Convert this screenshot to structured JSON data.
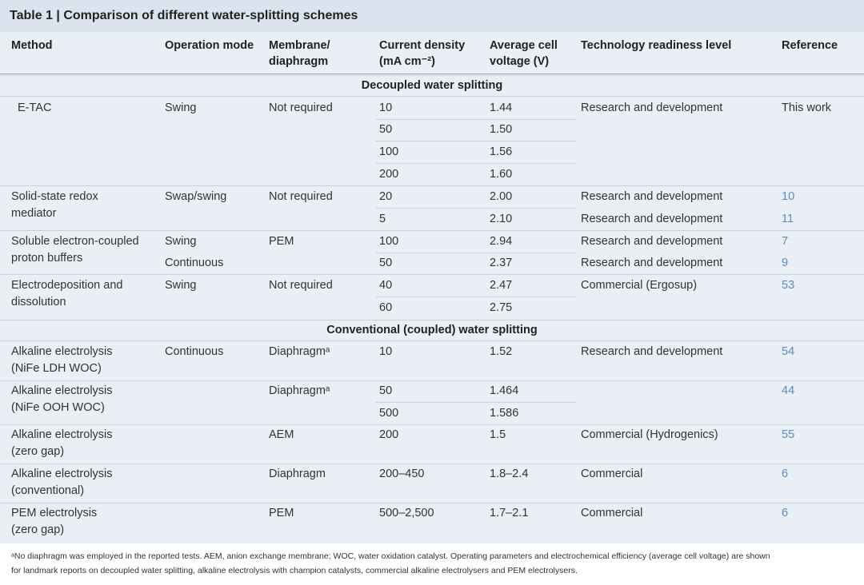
{
  "title": "Table 1 | Comparison of different water-splitting schemes",
  "columns": [
    [
      "Method"
    ],
    [
      "Operation mode"
    ],
    [
      "Membrane/",
      "diaphragm"
    ],
    [
      "Current density",
      "(mA cm⁻²)"
    ],
    [
      "Average cell",
      "voltage (V)"
    ],
    [
      "Technology readiness level"
    ],
    [
      "Reference"
    ]
  ],
  "sections": [
    {
      "title": "Decoupled water splitting",
      "groups": [
        {
          "method": [
            "E-TAC"
          ],
          "entries": [
            {
              "operation": "Swing",
              "membrane": "Not required",
              "current": "10",
              "voltage": "1.44",
              "trl": "Research and development",
              "reference": "This work"
            },
            {
              "current": "50",
              "voltage": "1.50"
            },
            {
              "current": "100",
              "voltage": "1.56"
            },
            {
              "current": "200",
              "voltage": "1.60"
            }
          ]
        },
        {
          "method": [
            "Solid-state redox",
            "mediator"
          ],
          "entries": [
            {
              "operation": "Swap/swing",
              "membrane": "Not required",
              "current": "20",
              "voltage": "2.00",
              "trl": "Research and development",
              "reference": "10"
            },
            {
              "current": "5",
              "voltage": "2.10",
              "trl": "Research and development",
              "reference": "11"
            }
          ]
        },
        {
          "method": [
            "Soluble electron-coupled",
            "proton buffers"
          ],
          "entries": [
            {
              "operation": "Swing",
              "membrane": "PEM",
              "current": "100",
              "voltage": "2.94",
              "trl": "Research and development",
              "reference": "7"
            },
            {
              "operation": "Continuous",
              "current": "50",
              "voltage": "2.37",
              "trl": "Research and development",
              "reference": "9"
            }
          ]
        },
        {
          "method": [
            "Electrodeposition and",
            "dissolution"
          ],
          "entries": [
            {
              "operation": "Swing",
              "membrane": "Not required",
              "current": "40",
              "voltage": "2.47",
              "trl": "Commercial (Ergosup)",
              "reference": "53"
            },
            {
              "current": "60",
              "voltage": "2.75"
            }
          ]
        }
      ]
    },
    {
      "title": "Conventional (coupled) water splitting",
      "groups": [
        {
          "method": [
            "Alkaline electrolysis",
            "(NiFe LDH WOC)"
          ],
          "entries": [
            {
              "operation": "Continuous",
              "membrane": "Diaphragmᵃ",
              "current": "10",
              "voltage": "1.52",
              "trl": "Research and development",
              "reference": "54"
            }
          ]
        },
        {
          "method": [
            "Alkaline electrolysis",
            "(NiFe OOH WOC)"
          ],
          "entries": [
            {
              "membrane": "Diaphragmᵃ",
              "current": "50",
              "voltage": "1.464",
              "reference": "44"
            },
            {
              "current": "500",
              "voltage": "1.586"
            }
          ]
        },
        {
          "method": [
            "Alkaline electrolysis",
            "(zero gap)"
          ],
          "entries": [
            {
              "membrane": "AEM",
              "current": "200",
              "voltage": "1.5",
              "trl": "Commercial (Hydrogenics)",
              "reference": "55"
            }
          ]
        },
        {
          "method": [
            "Alkaline electrolysis",
            "(conventional)"
          ],
          "entries": [
            {
              "membrane": "Diaphragm",
              "current": "200–450",
              "voltage": "1.8–2.4",
              "trl": "Commercial",
              "reference": "6"
            }
          ]
        },
        {
          "method": [
            "PEM electrolysis",
            "(zero gap)"
          ],
          "entries": [
            {
              "membrane": "PEM",
              "current": "500–2,500",
              "voltage": "1.7–2.1",
              "trl": "Commercial",
              "reference": "6"
            }
          ]
        }
      ]
    }
  ],
  "footnote": [
    "ᵃNo diaphragm was employed in the reported tests. AEM, anion exchange membrane; WOC, water oxidation catalyst. Operating parameters and electrochemical efficiency (average cell voltage) are shown",
    "for landmark reports on decoupled water splitting, alkaline electrolysis with champion catalysts, commercial alkaline electrolysers and PEM electrolysers."
  ]
}
